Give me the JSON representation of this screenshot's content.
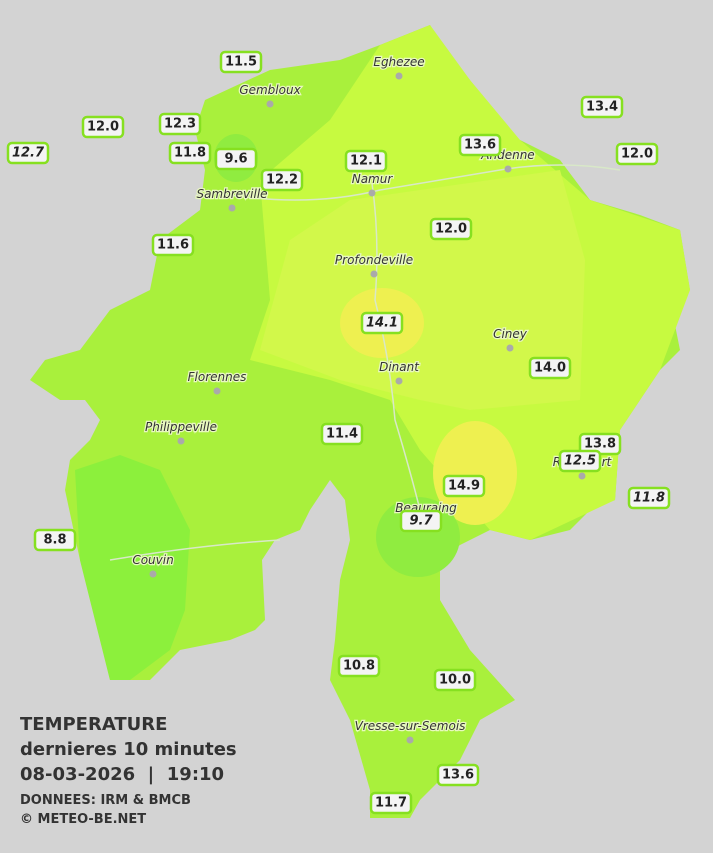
{
  "legend": {
    "title": "TEMPERATURE",
    "subtitle": "dernieres 10 minutes",
    "datetime": "08-03-2026  |  19:10",
    "source": "DONNEES: IRM & BMCB",
    "copyright": "© METEO-BE.NET"
  },
  "cities": [
    "Eghezee",
    "Gembloux",
    "Andenne",
    "Namur",
    "Sambreville",
    "Profondeville",
    "Ciney",
    "Dinant",
    "Florennes",
    "Philippeville",
    "Beauraing",
    "Rochefort",
    "Couvin",
    "Vresse-sur-Semois"
  ],
  "stations": [
    "11.5",
    "12.0",
    "12.3",
    "12.7",
    "11.8",
    "9.6",
    "12.2",
    "12.1",
    "13.6",
    "13.4",
    "12.0",
    "11.6",
    "12.0",
    "14.1",
    "14.0",
    "11.4",
    "13.8",
    "12.5",
    "14.9",
    "11.8",
    "8.8",
    "9.7",
    "10.8",
    "10.0",
    "13.6",
    "11.7"
  ]
}
